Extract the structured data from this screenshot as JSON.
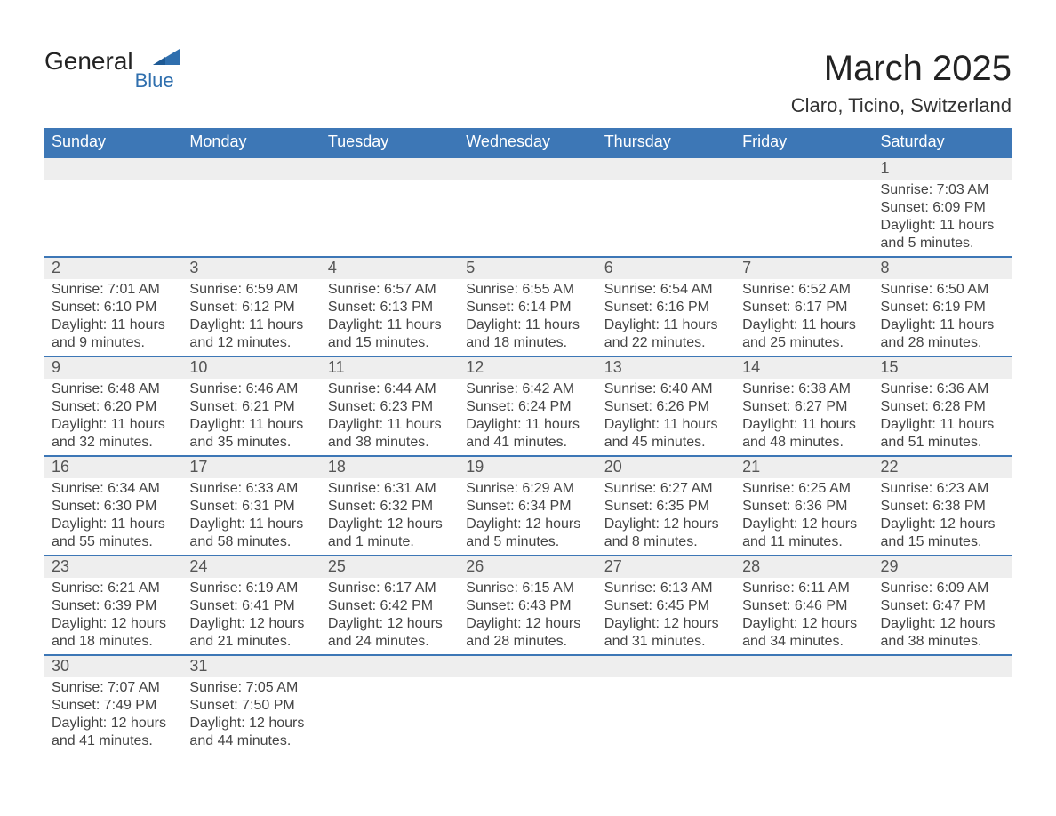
{
  "logo": {
    "primary": "General",
    "secondary": "Blue"
  },
  "title": "March 2025",
  "subtitle": "Claro, Ticino, Switzerland",
  "colors": {
    "header_bg": "#3d77b6",
    "header_text": "#ffffff",
    "daynum_bg": "#eeeeee",
    "daynum_text": "#555555",
    "body_text": "#444444",
    "rule": "#3d77b6",
    "page_bg": "#ffffff",
    "logo_blue": "#2f6fae",
    "logo_text": "#222222"
  },
  "typography": {
    "title_fontsize": 40,
    "subtitle_fontsize": 22,
    "dow_fontsize": 18,
    "daynum_fontsize": 18,
    "body_fontsize": 16,
    "font_family": "Arial"
  },
  "day_names": [
    "Sunday",
    "Monday",
    "Tuesday",
    "Wednesday",
    "Thursday",
    "Friday",
    "Saturday"
  ],
  "weeks": [
    [
      {
        "empty": true
      },
      {
        "empty": true
      },
      {
        "empty": true
      },
      {
        "empty": true
      },
      {
        "empty": true
      },
      {
        "empty": true
      },
      {
        "day": "1",
        "sunrise": "Sunrise: 7:03 AM",
        "sunset": "Sunset: 6:09 PM",
        "daylight": "Daylight: 11 hours and 5 minutes."
      }
    ],
    [
      {
        "day": "2",
        "sunrise": "Sunrise: 7:01 AM",
        "sunset": "Sunset: 6:10 PM",
        "daylight": "Daylight: 11 hours and 9 minutes."
      },
      {
        "day": "3",
        "sunrise": "Sunrise: 6:59 AM",
        "sunset": "Sunset: 6:12 PM",
        "daylight": "Daylight: 11 hours and 12 minutes."
      },
      {
        "day": "4",
        "sunrise": "Sunrise: 6:57 AM",
        "sunset": "Sunset: 6:13 PM",
        "daylight": "Daylight: 11 hours and 15 minutes."
      },
      {
        "day": "5",
        "sunrise": "Sunrise: 6:55 AM",
        "sunset": "Sunset: 6:14 PM",
        "daylight": "Daylight: 11 hours and 18 minutes."
      },
      {
        "day": "6",
        "sunrise": "Sunrise: 6:54 AM",
        "sunset": "Sunset: 6:16 PM",
        "daylight": "Daylight: 11 hours and 22 minutes."
      },
      {
        "day": "7",
        "sunrise": "Sunrise: 6:52 AM",
        "sunset": "Sunset: 6:17 PM",
        "daylight": "Daylight: 11 hours and 25 minutes."
      },
      {
        "day": "8",
        "sunrise": "Sunrise: 6:50 AM",
        "sunset": "Sunset: 6:19 PM",
        "daylight": "Daylight: 11 hours and 28 minutes."
      }
    ],
    [
      {
        "day": "9",
        "sunrise": "Sunrise: 6:48 AM",
        "sunset": "Sunset: 6:20 PM",
        "daylight": "Daylight: 11 hours and 32 minutes."
      },
      {
        "day": "10",
        "sunrise": "Sunrise: 6:46 AM",
        "sunset": "Sunset: 6:21 PM",
        "daylight": "Daylight: 11 hours and 35 minutes."
      },
      {
        "day": "11",
        "sunrise": "Sunrise: 6:44 AM",
        "sunset": "Sunset: 6:23 PM",
        "daylight": "Daylight: 11 hours and 38 minutes."
      },
      {
        "day": "12",
        "sunrise": "Sunrise: 6:42 AM",
        "sunset": "Sunset: 6:24 PM",
        "daylight": "Daylight: 11 hours and 41 minutes."
      },
      {
        "day": "13",
        "sunrise": "Sunrise: 6:40 AM",
        "sunset": "Sunset: 6:26 PM",
        "daylight": "Daylight: 11 hours and 45 minutes."
      },
      {
        "day": "14",
        "sunrise": "Sunrise: 6:38 AM",
        "sunset": "Sunset: 6:27 PM",
        "daylight": "Daylight: 11 hours and 48 minutes."
      },
      {
        "day": "15",
        "sunrise": "Sunrise: 6:36 AM",
        "sunset": "Sunset: 6:28 PM",
        "daylight": "Daylight: 11 hours and 51 minutes."
      }
    ],
    [
      {
        "day": "16",
        "sunrise": "Sunrise: 6:34 AM",
        "sunset": "Sunset: 6:30 PM",
        "daylight": "Daylight: 11 hours and 55 minutes."
      },
      {
        "day": "17",
        "sunrise": "Sunrise: 6:33 AM",
        "sunset": "Sunset: 6:31 PM",
        "daylight": "Daylight: 11 hours and 58 minutes."
      },
      {
        "day": "18",
        "sunrise": "Sunrise: 6:31 AM",
        "sunset": "Sunset: 6:32 PM",
        "daylight": "Daylight: 12 hours and 1 minute."
      },
      {
        "day": "19",
        "sunrise": "Sunrise: 6:29 AM",
        "sunset": "Sunset: 6:34 PM",
        "daylight": "Daylight: 12 hours and 5 minutes."
      },
      {
        "day": "20",
        "sunrise": "Sunrise: 6:27 AM",
        "sunset": "Sunset: 6:35 PM",
        "daylight": "Daylight: 12 hours and 8 minutes."
      },
      {
        "day": "21",
        "sunrise": "Sunrise: 6:25 AM",
        "sunset": "Sunset: 6:36 PM",
        "daylight": "Daylight: 12 hours and 11 minutes."
      },
      {
        "day": "22",
        "sunrise": "Sunrise: 6:23 AM",
        "sunset": "Sunset: 6:38 PM",
        "daylight": "Daylight: 12 hours and 15 minutes."
      }
    ],
    [
      {
        "day": "23",
        "sunrise": "Sunrise: 6:21 AM",
        "sunset": "Sunset: 6:39 PM",
        "daylight": "Daylight: 12 hours and 18 minutes."
      },
      {
        "day": "24",
        "sunrise": "Sunrise: 6:19 AM",
        "sunset": "Sunset: 6:41 PM",
        "daylight": "Daylight: 12 hours and 21 minutes."
      },
      {
        "day": "25",
        "sunrise": "Sunrise: 6:17 AM",
        "sunset": "Sunset: 6:42 PM",
        "daylight": "Daylight: 12 hours and 24 minutes."
      },
      {
        "day": "26",
        "sunrise": "Sunrise: 6:15 AM",
        "sunset": "Sunset: 6:43 PM",
        "daylight": "Daylight: 12 hours and 28 minutes."
      },
      {
        "day": "27",
        "sunrise": "Sunrise: 6:13 AM",
        "sunset": "Sunset: 6:45 PM",
        "daylight": "Daylight: 12 hours and 31 minutes."
      },
      {
        "day": "28",
        "sunrise": "Sunrise: 6:11 AM",
        "sunset": "Sunset: 6:46 PM",
        "daylight": "Daylight: 12 hours and 34 minutes."
      },
      {
        "day": "29",
        "sunrise": "Sunrise: 6:09 AM",
        "sunset": "Sunset: 6:47 PM",
        "daylight": "Daylight: 12 hours and 38 minutes."
      }
    ],
    [
      {
        "day": "30",
        "sunrise": "Sunrise: 7:07 AM",
        "sunset": "Sunset: 7:49 PM",
        "daylight": "Daylight: 12 hours and 41 minutes."
      },
      {
        "day": "31",
        "sunrise": "Sunrise: 7:05 AM",
        "sunset": "Sunset: 7:50 PM",
        "daylight": "Daylight: 12 hours and 44 minutes."
      },
      {
        "empty": true
      },
      {
        "empty": true
      },
      {
        "empty": true
      },
      {
        "empty": true
      },
      {
        "empty": true
      }
    ]
  ]
}
